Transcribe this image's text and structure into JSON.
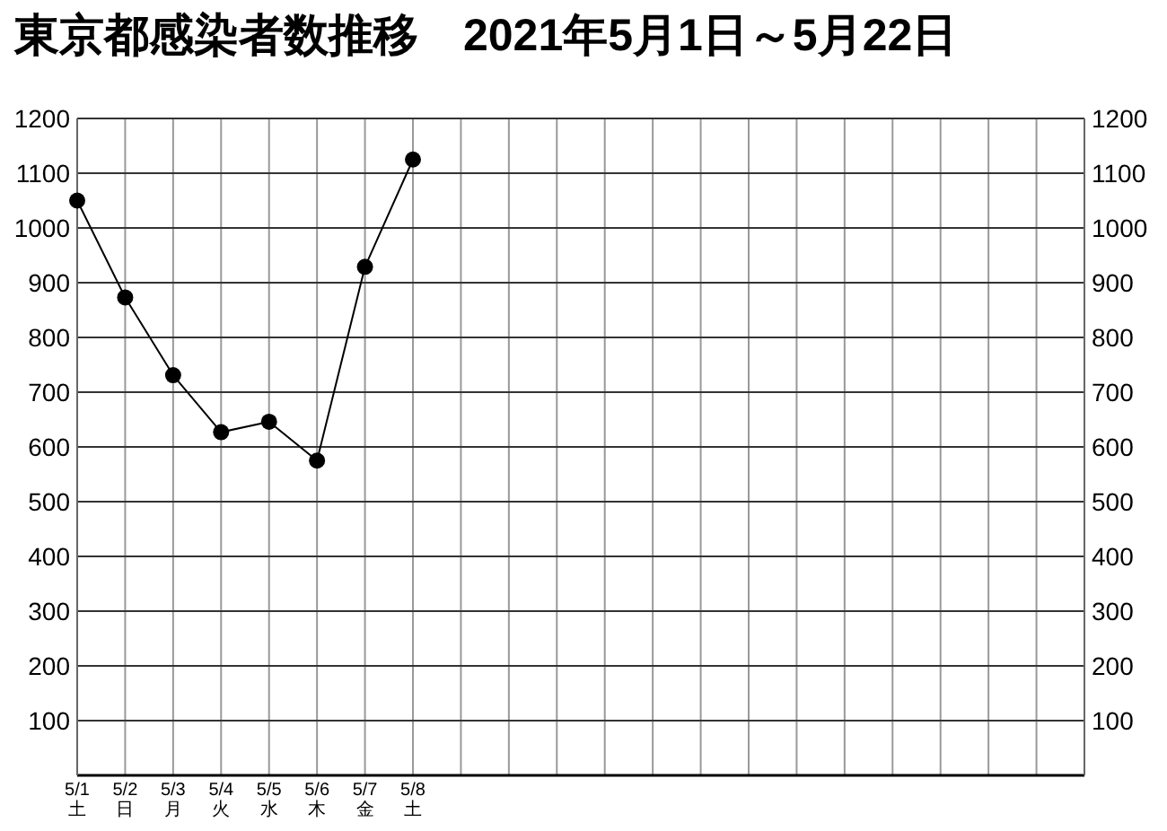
{
  "chart_data": {
    "type": "line",
    "title": "東京都感染者数推移　2021年5月1日～5月22日",
    "categories": [
      "5/1\n土",
      "5/2\n日",
      "5/3\n月",
      "5/4\n火",
      "5/5\n水",
      "5/6\n木",
      "5/7\n金",
      "5/8\n土",
      null,
      null,
      null,
      null,
      null,
      null,
      null,
      null,
      null,
      null,
      null,
      null,
      null,
      null
    ],
    "series": [
      {
        "color": "#000000",
        "values": [
          1050,
          873,
          731,
          627,
          646,
          575,
          929,
          1125,
          null,
          null,
          null,
          null,
          null,
          null,
          null,
          null,
          null,
          null,
          null,
          null,
          null,
          null
        ]
      }
    ],
    "ylim": [
      0,
      1200
    ],
    "yticks": [
      100,
      200,
      300,
      400,
      500,
      600,
      700,
      800,
      900,
      1000,
      1100,
      1200
    ],
    "y2lim": [
      0,
      1200
    ],
    "y2ticks": [
      100,
      200,
      300,
      400,
      500,
      600,
      700,
      800,
      900,
      1000,
      1100,
      1200
    ],
    "grid": true,
    "marker": "circle",
    "line_style": "solid"
  }
}
